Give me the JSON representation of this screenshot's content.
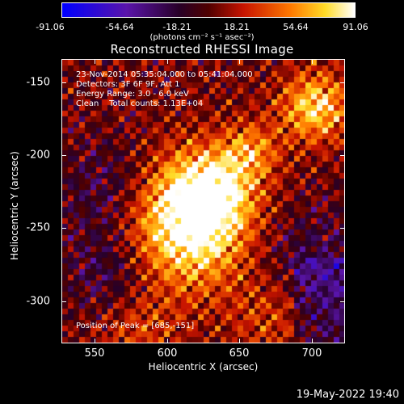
{
  "colorbar": {
    "ticks": [
      "-91.06",
      "-54.64",
      "-18.21",
      "18.21",
      "54.64",
      "91.06"
    ],
    "units": "(photons cm⁻² s⁻¹ asec⁻²)"
  },
  "title": "Reconstructed RHESSI Image",
  "annotations": {
    "time_range": "23-Nov-2014 05:35:04.000 to 05:41:04.000",
    "detectors": "Detectors: 3F 6F 9F, Att 1",
    "energy": "Energy Range: 3.0 - 6.0 keV",
    "clean": "Clean    Total counts: 1.13E+04",
    "peak": "Position of Peak = [685,-151]"
  },
  "axes": {
    "xlabel": "Heliocentric X (arcsec)",
    "ylabel": "Heliocentric Y (arcsec)",
    "xticks": [
      "550",
      "600",
      "650",
      "700"
    ],
    "yticks": [
      "-150",
      "-200",
      "-250",
      "-300"
    ]
  },
  "timestamp": "19-May-2022 19:40"
}
